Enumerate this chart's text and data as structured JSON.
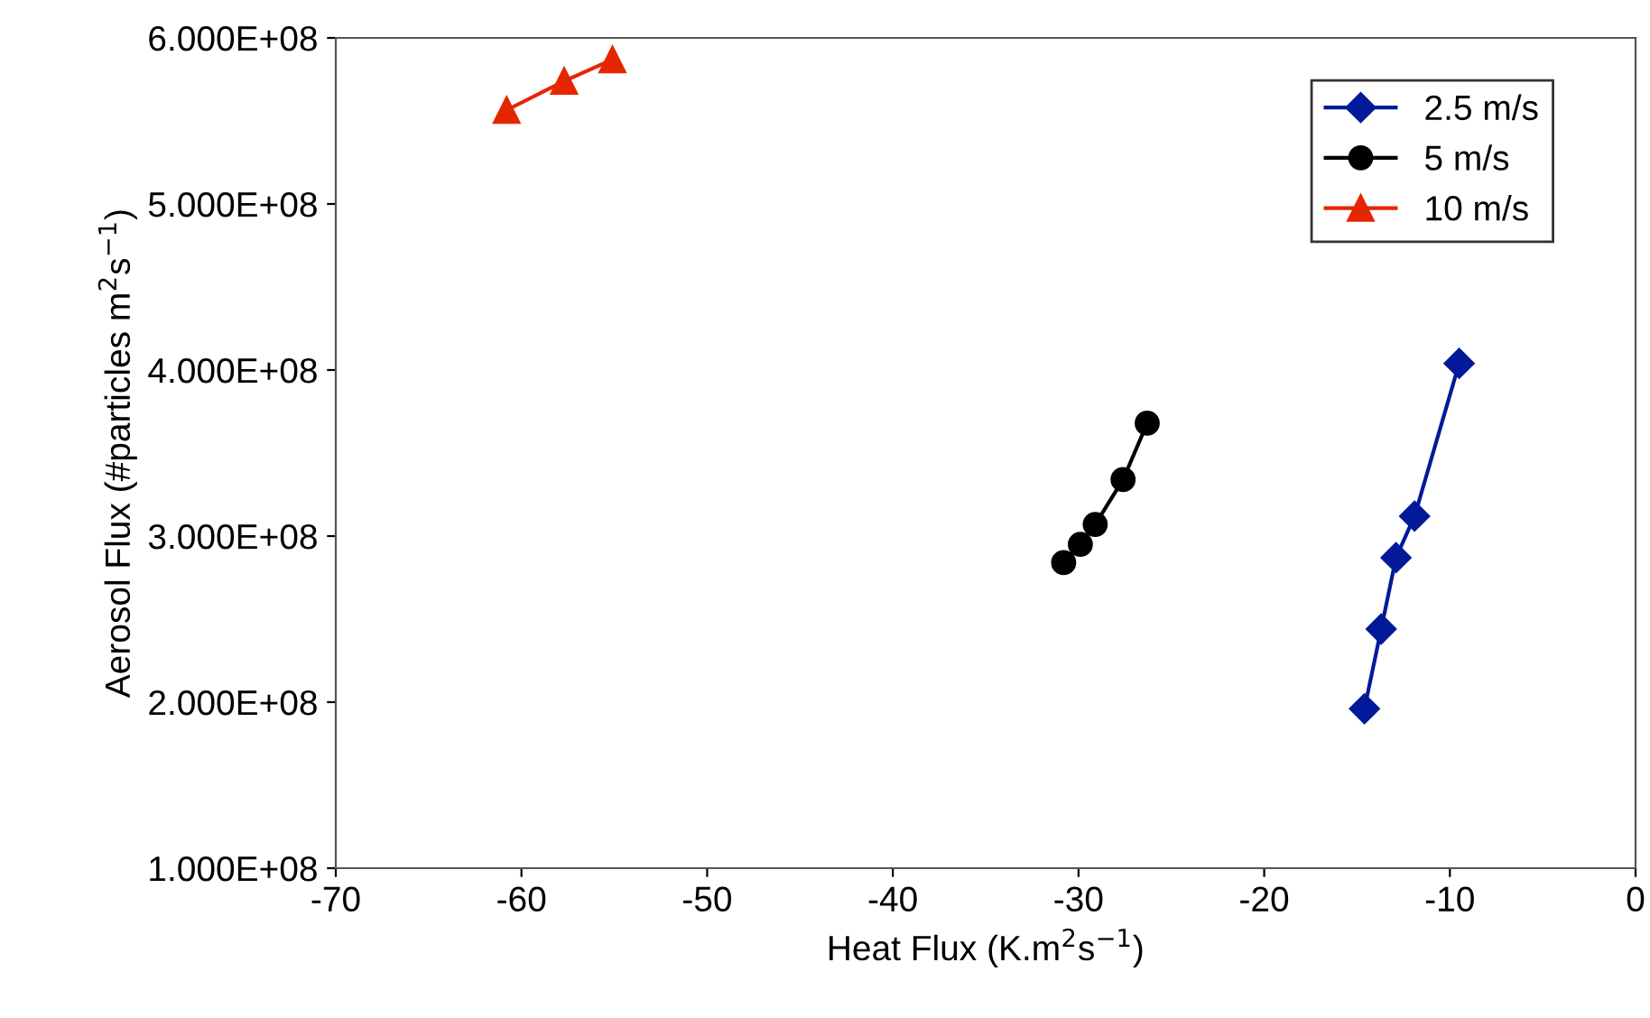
{
  "chart_data": {
    "type": "line",
    "xlabel": "Heat Flux (K.m$^{2}$s$^{−1}$)",
    "ylabel": "Aerosol Flux (#particles m$^{2}$s$^{−1}$)",
    "xlim": [
      -70,
      0
    ],
    "xticks": [
      -70,
      -60,
      -50,
      -40,
      -30,
      -20,
      -10,
      0
    ],
    "ylim": [
      100000000,
      600000000
    ],
    "yticks": [
      {
        "value": 100000000,
        "label": "1.000E+08"
      },
      {
        "value": 200000000,
        "label": "2.000E+08"
      },
      {
        "value": 300000000,
        "label": "3.000E+08"
      },
      {
        "value": 400000000,
        "label": "4.000E+08"
      },
      {
        "value": 500000000,
        "label": "5.000E+08"
      },
      {
        "value": 600000000,
        "label": "6.000E+08"
      }
    ],
    "grid": false,
    "legend": "top right",
    "line_style": "solid",
    "series": [
      {
        "name": "2.5 m/s",
        "color": "#001a99",
        "marker": "diamond",
        "x": [
          -14.6,
          -13.7,
          -12.9,
          -11.9,
          -9.5
        ],
        "values": [
          196000000,
          244000000,
          287000000,
          312000000,
          404000000
        ]
      },
      {
        "name": "5 m/s",
        "color": "#000000",
        "marker": "circle",
        "x": [
          -30.8,
          -29.9,
          -29.1,
          -27.6,
          -26.3
        ],
        "values": [
          284000000,
          295000000,
          307000000,
          334000000,
          368000000
        ]
      },
      {
        "name": "10 m/s",
        "color": "#e62600",
        "marker": "triangle",
        "x": [
          -60.8,
          -57.7,
          -55.1
        ],
        "values": [
          556500000,
          574000000,
          587000000
        ]
      }
    ]
  }
}
